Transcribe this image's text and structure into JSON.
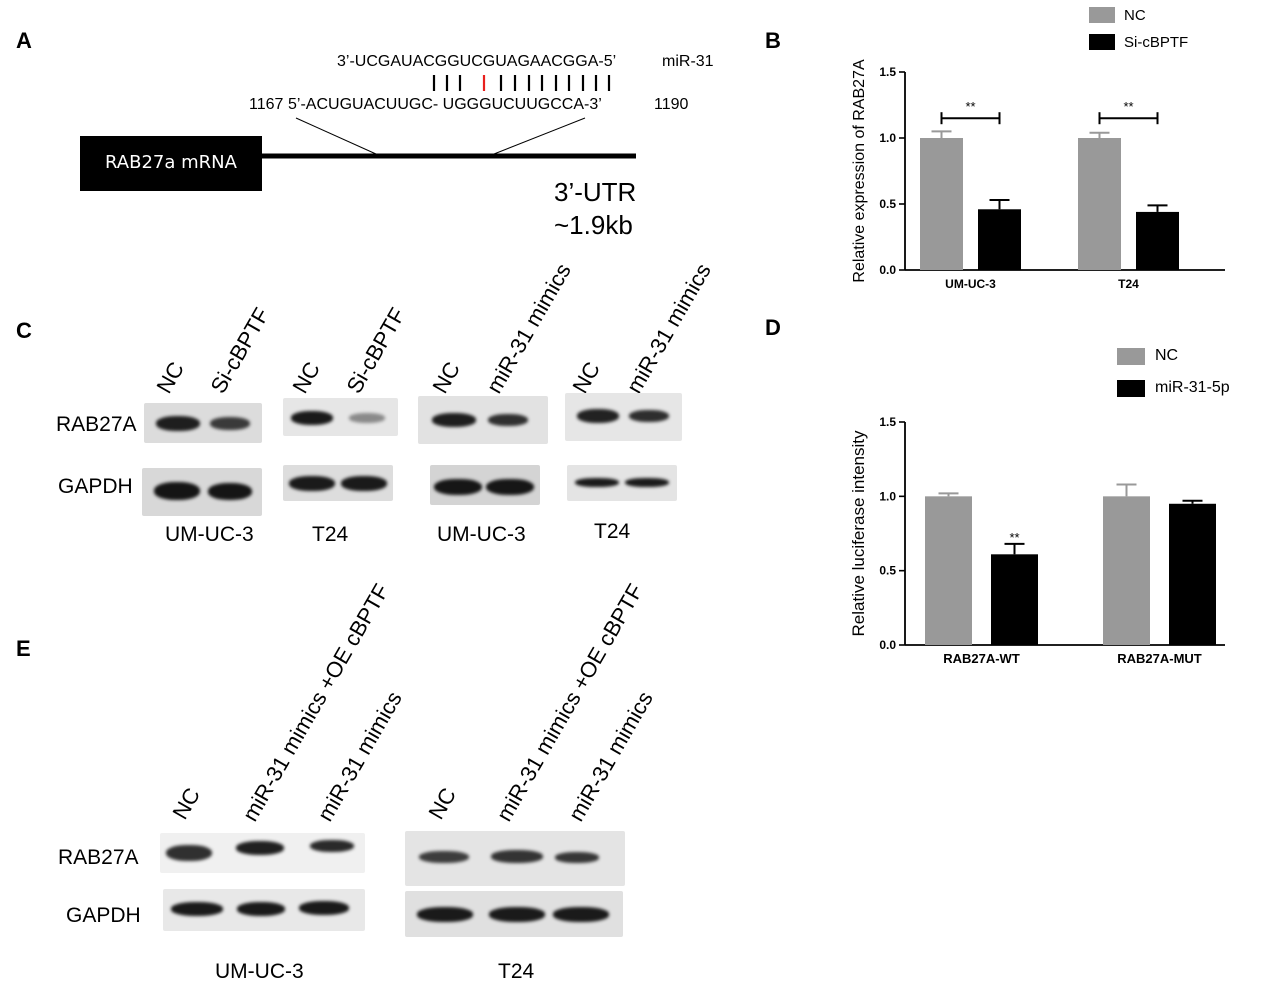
{
  "panels": {
    "a": "A",
    "b": "B",
    "c": "C",
    "d": "D",
    "e": "E"
  },
  "panel_a": {
    "mirna_seq": "3’-UCGAUACGGUCGUAGAACGGA-5’",
    "mirna_name": "miR-31",
    "mrna_start": "1167",
    "mrna_seq": "5’-ACUGUACUUGC- UGGGUCUUGCCA-3’",
    "mrna_end": "1190",
    "box_label": "RAB27a mRNA",
    "utr_line1": "3’-UTR",
    "utr_line2": "~1.9kb",
    "colors": {
      "pair": "#000000",
      "mismatch": "#e8201e"
    }
  },
  "panel_c": {
    "lanes": [
      "NC",
      "Si-cBPTF",
      "NC",
      "Si-cBPTF",
      "NC",
      "miR-31 mimics",
      "NC",
      "miR-31 mimics"
    ],
    "row1": "RAB27A",
    "row2": "GAPDH",
    "cells": [
      "UM-UC-3",
      "T24",
      "UM-UC-3",
      "T24"
    ]
  },
  "panel_e": {
    "lanes": [
      "NC",
      "miR-31 mimics +OE cBPTF",
      "miR-31 mimics",
      "NC",
      "miR-31 mimics +OE cBPTF",
      "miR-31 mimics"
    ],
    "row1": "RAB27A",
    "row2": "GAPDH",
    "cells": [
      "UM-UC-3",
      "T24"
    ]
  },
  "chart_data": [
    {
      "panel": "B",
      "type": "bar",
      "categories": [
        "UM-UC-3",
        "T24"
      ],
      "series": [
        {
          "name": "NC",
          "values": [
            1.0,
            1.0
          ],
          "errors": [
            0.05,
            0.04
          ],
          "color": "#999999"
        },
        {
          "name": "Si-cBPTF",
          "values": [
            0.46,
            0.44
          ],
          "errors": [
            0.07,
            0.05
          ],
          "color": "#000000"
        }
      ],
      "title": "",
      "xlabel": "",
      "ylabel": "Relative  expression of  RAB27A",
      "ylim": [
        0,
        1.5
      ],
      "yticks": [
        "0.0",
        "0.5",
        "1.0",
        "1.5"
      ],
      "significance": [
        "**",
        "**"
      ],
      "legend_position": "top-right"
    },
    {
      "panel": "D",
      "type": "bar",
      "categories": [
        "RAB27A-WT",
        "RAB27A-MUT"
      ],
      "series": [
        {
          "name": "NC",
          "values": [
            1.0,
            1.0
          ],
          "errors": [
            0.02,
            0.08
          ],
          "color": "#999999"
        },
        {
          "name": "miR-31-5p",
          "values": [
            0.61,
            0.95
          ],
          "errors": [
            0.07,
            0.02
          ],
          "color": "#000000"
        }
      ],
      "title": "",
      "xlabel": "",
      "ylabel": "Relative  luciferase intensity",
      "ylim": [
        0,
        1.5
      ],
      "yticks": [
        "0.0",
        "0.5",
        "1.0",
        "1.5"
      ],
      "significance": [
        "**",
        ""
      ],
      "legend_position": "top-right"
    }
  ]
}
